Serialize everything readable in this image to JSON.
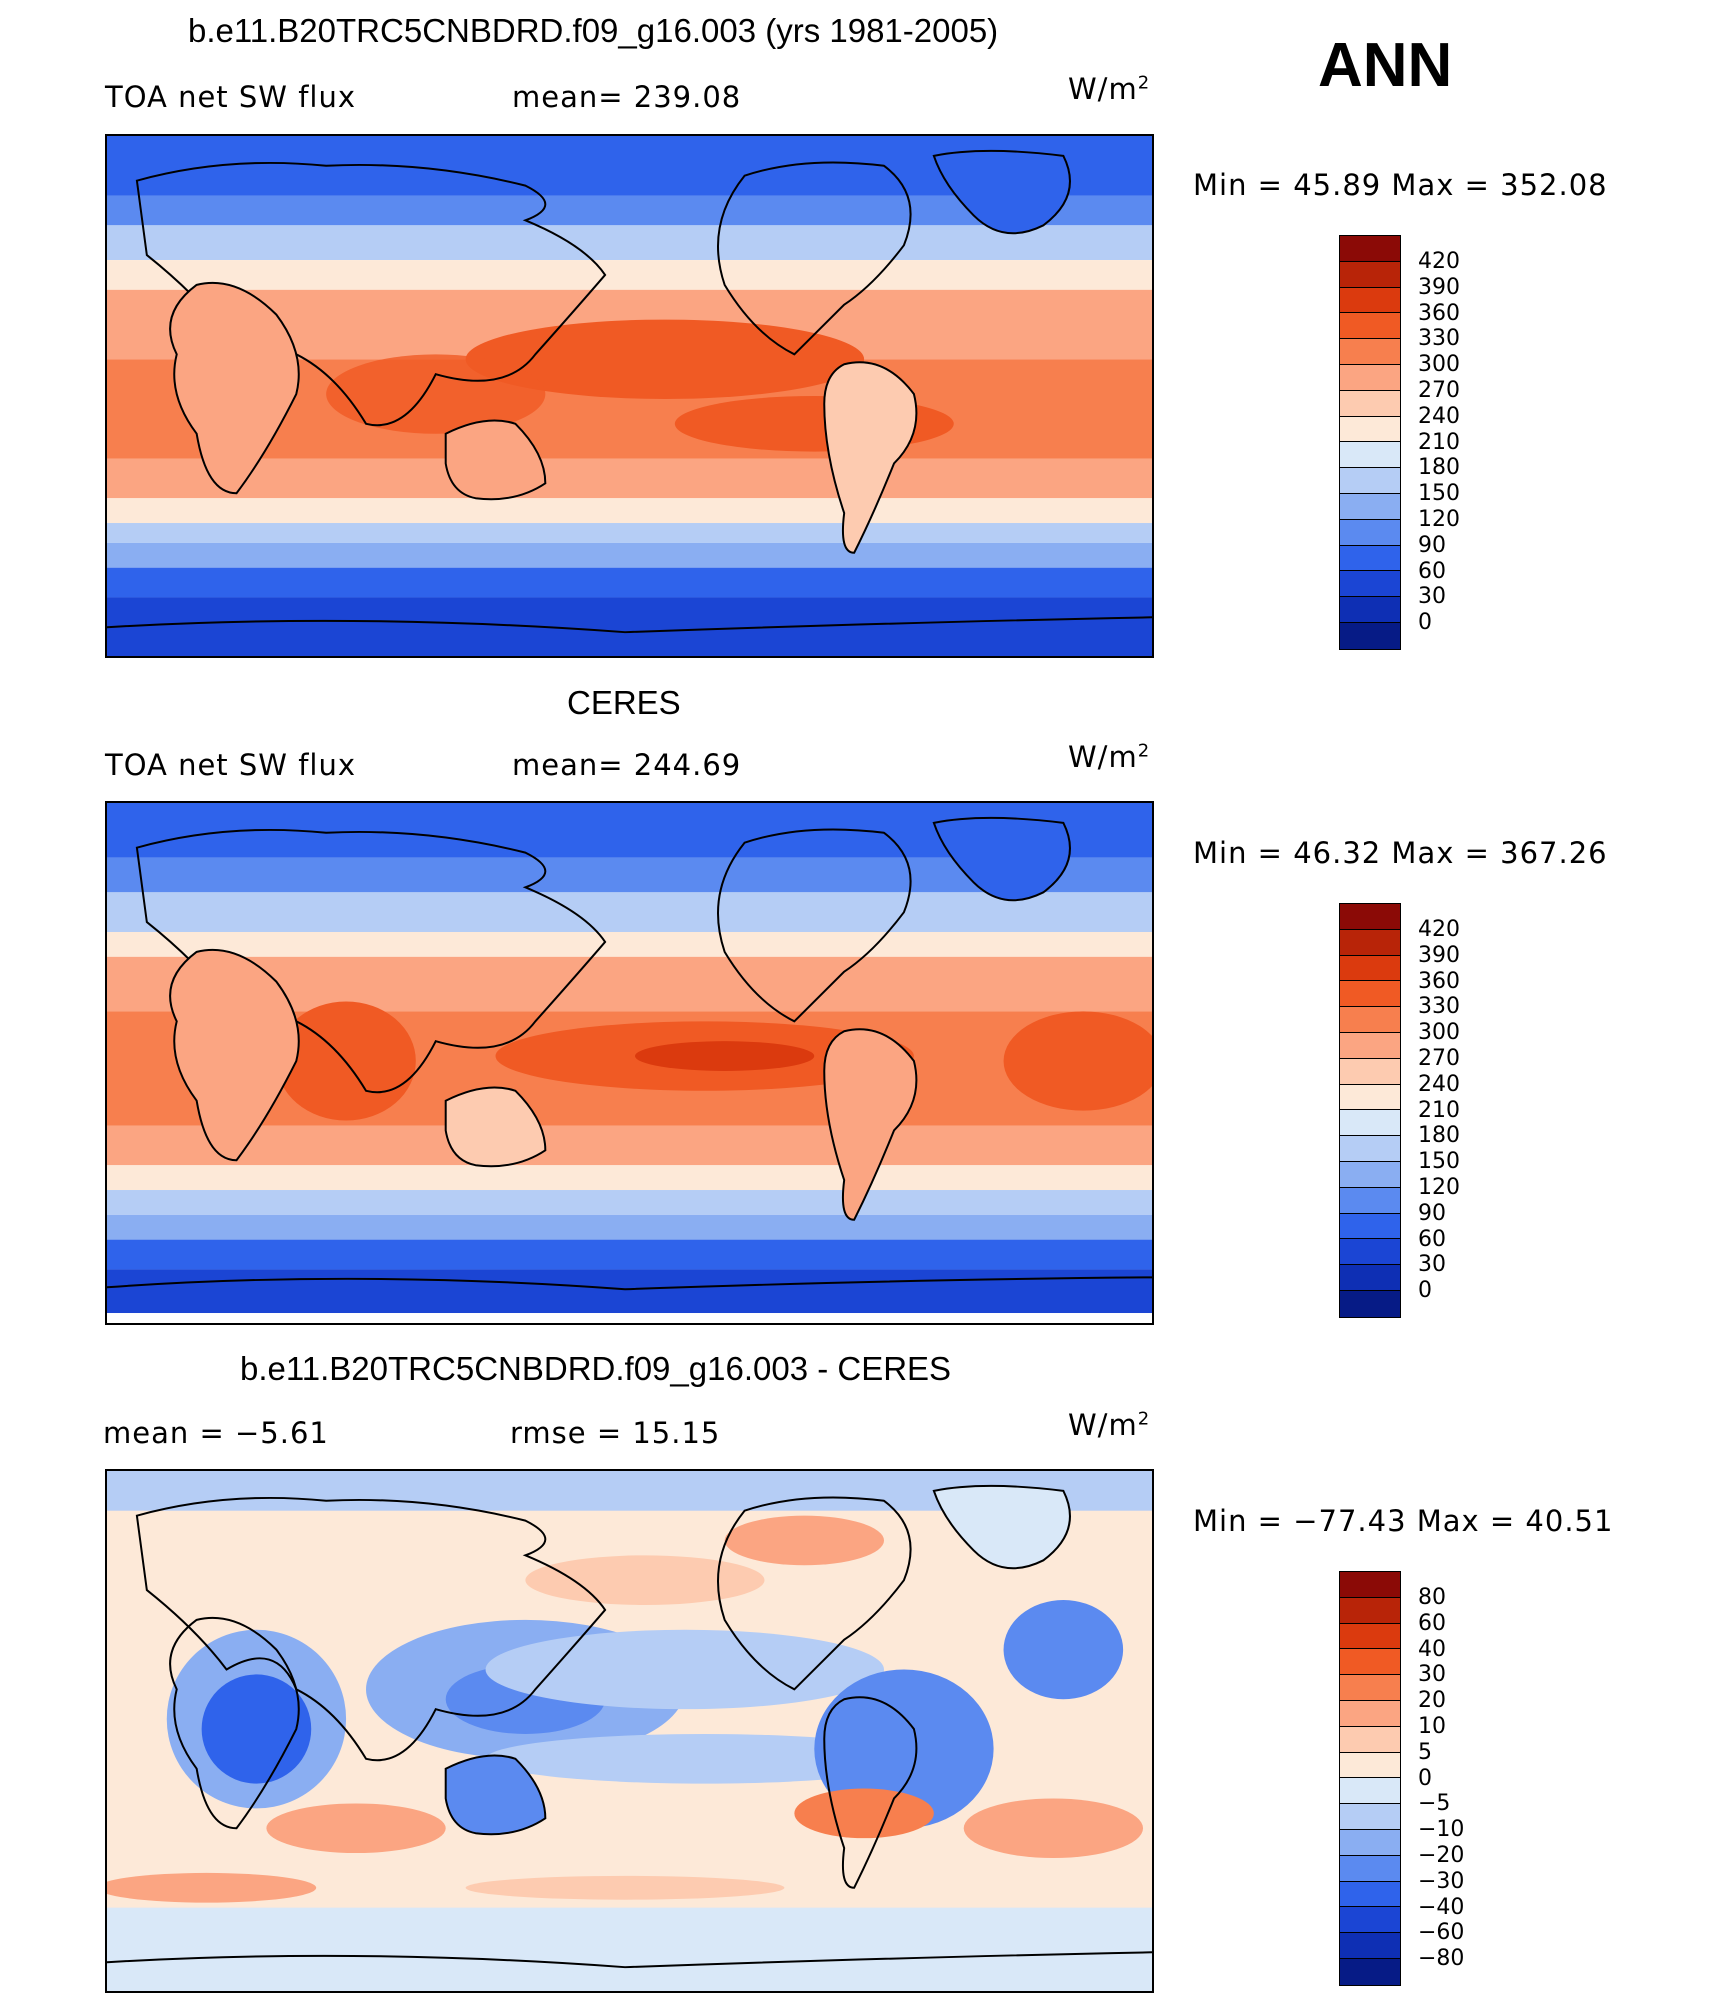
{
  "season": "ANN",
  "units_base": "W/m",
  "units_exp": "2",
  "panels": [
    {
      "title": "b.e11.B20TRC5CNBDRD.f09_g16.003 (yrs 1981-2005)",
      "left_label": "TOA net SW flux",
      "center_label": "mean= 239.08",
      "minmax": "Min =   45.89 Max = 352.08",
      "colorbar_labels": [
        "420",
        "390",
        "360",
        "330",
        "300",
        "270",
        "240",
        "210",
        "180",
        "150",
        "120",
        "90",
        "60",
        "30",
        "0"
      ]
    },
    {
      "title": "CERES",
      "left_label": "TOA net SW flux",
      "center_label": "mean= 244.69",
      "minmax": "Min =   46.32 Max = 367.26",
      "colorbar_labels": [
        "420",
        "390",
        "360",
        "330",
        "300",
        "270",
        "240",
        "210",
        "180",
        "150",
        "120",
        "90",
        "60",
        "30",
        "0"
      ]
    },
    {
      "title": "b.e11.B20TRC5CNBDRD.f09_g16.003 - CERES",
      "left_label": "mean =   −5.61",
      "center_label": "rmse =   15.15",
      "minmax": "Min = −77.43 Max =   40.51",
      "colorbar_labels": [
        "80",
        "60",
        "40",
        "30",
        "20",
        "10",
        "5",
        "0",
        "−5",
        "−10",
        "−20",
        "−30",
        "−40",
        "−60",
        "−80"
      ]
    }
  ],
  "colors": {
    "scale": [
      "#8b0a06",
      "#b82408",
      "#db3a0e",
      "#f05a24",
      "#f77f4e",
      "#fba582",
      "#fdcbb0",
      "#fde9d8",
      "#d9e8f8",
      "#b5cdf5",
      "#8aaef2",
      "#5b8af0",
      "#2f63eb",
      "#1b45d4",
      "#0e2fb4",
      "#061b86"
    ]
  }
}
